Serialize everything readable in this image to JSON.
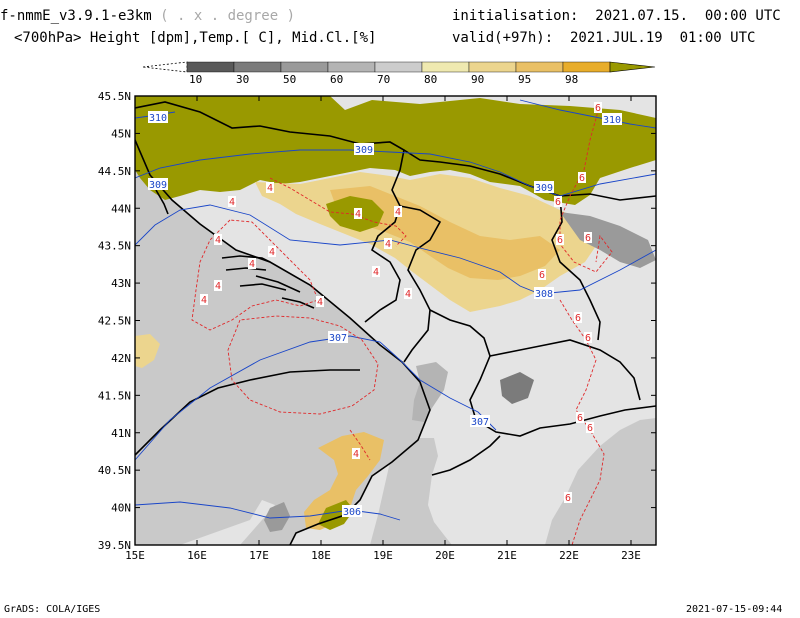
{
  "header": {
    "model_prefix": "f-nmmE_v3.9.1-e3km",
    "model_units": " ( . x . degree )",
    "params": "<700hPa> Height [dpm],Temp.[ C], Mid.Cl.[%]",
    "init": "initialisation:  2021.07.15.  00:00 UTC",
    "valid": "valid(+97h):  2021.JUL.19  01:00 UTC"
  },
  "footer": {
    "left": "GrADS: COLA/IGES",
    "right": "2021-07-15-09:44"
  },
  "colorbar": {
    "labels": [
      "10",
      "30",
      "50",
      "60",
      "70",
      "80",
      "90",
      "95",
      "98"
    ],
    "colors": [
      "#595959",
      "#7b7b7b",
      "#9a9a9a",
      "#b4b4b4",
      "#cccccc",
      "#efe9b0",
      "#ecd58e",
      "#e9c066",
      "#e8ad2b"
    ],
    "end_color": "#999900"
  },
  "colors": {
    "land": "#e4e4e4",
    "sea": "#c9c9c9",
    "height_contour": "#1a46c8",
    "temp_contour": "#e0282a",
    "cloud_max": "#999900"
  },
  "map": {
    "lat_labels": [
      "45.5N",
      "45N",
      "44.5N",
      "44N",
      "43.5N",
      "43N",
      "42.5N",
      "42N",
      "41.5N",
      "41N",
      "40.5N",
      "40N",
      "39.5N"
    ],
    "lon_labels": [
      "15E",
      "16E",
      "17E",
      "18E",
      "19E",
      "20E",
      "21E",
      "22E",
      "23E"
    ],
    "height_labels": [
      "310",
      "310",
      "309",
      "309",
      "309",
      "308",
      "307",
      "307",
      "306"
    ],
    "temp_labels": [
      "4",
      "6"
    ]
  }
}
